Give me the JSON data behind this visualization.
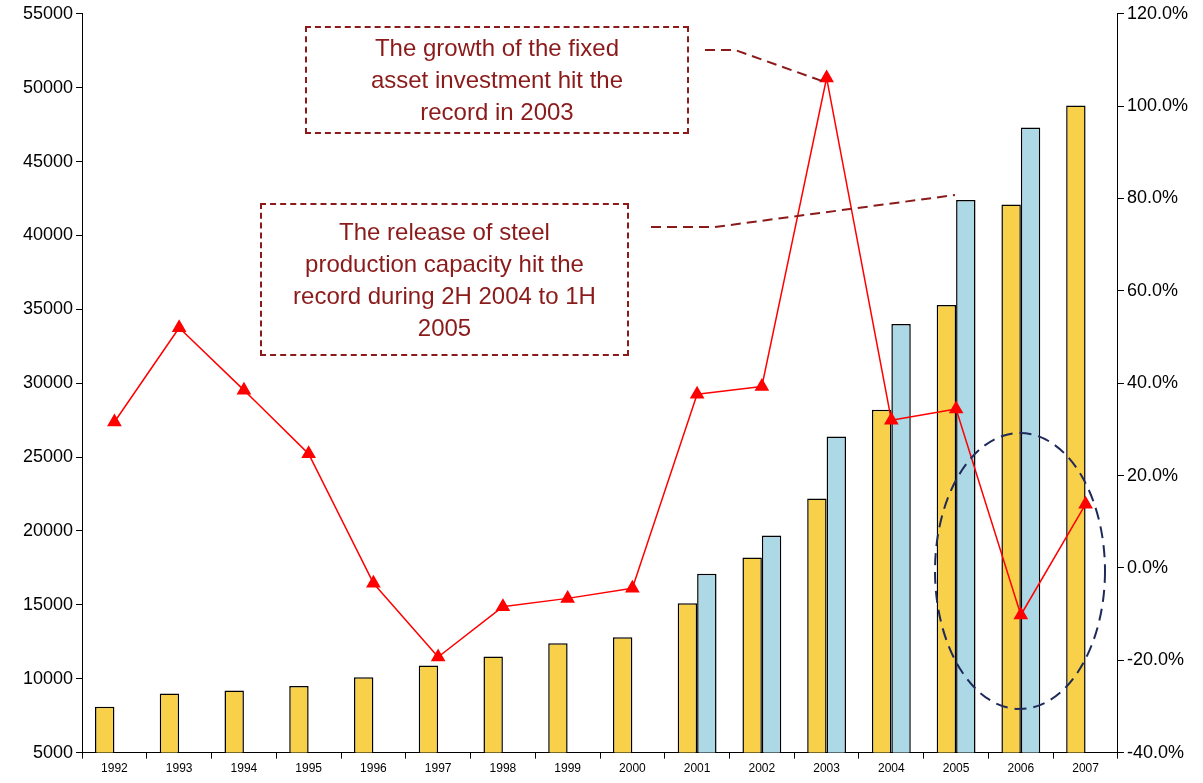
{
  "chart_data": {
    "type": "bar",
    "categories": [
      "1992",
      "1993",
      "1994",
      "1995",
      "1996",
      "1997",
      "1998",
      "1999",
      "2000",
      "2001",
      "2002",
      "2003",
      "2004",
      "2005",
      "2006",
      "2007"
    ],
    "series": [
      {
        "color": "#f8d04a",
        "values": [
          8100,
          9000,
          9200,
          9500,
          10100,
          10900,
          11500,
          12400,
          12800,
          15100,
          18200,
          22200,
          28200,
          35300,
          42100,
          48800
        ]
      },
      {
        "color": "#add8e6",
        "values": [
          null,
          null,
          null,
          null,
          null,
          null,
          null,
          null,
          null,
          17100,
          19700,
          26400,
          34000,
          42400,
          47300,
          null
        ]
      },
      {
        "type": "line",
        "axis": "y2",
        "color": "#ff0000",
        "marker": "triangle",
        "values": [
          31.6,
          52.0,
          38.5,
          24.7,
          -3.3,
          -19.3,
          -8.4,
          -6.6,
          -4.4,
          37.6,
          39.3,
          106.1,
          32.0,
          34.4,
          -10.2,
          13.8
        ]
      }
    ],
    "ylim": [
      5000,
      55000
    ],
    "yticks": [
      5000,
      10000,
      15000,
      20000,
      25000,
      30000,
      35000,
      40000,
      45000,
      50000,
      55000
    ],
    "y2lim": [
      -40,
      120
    ],
    "y2ticks": [
      {
        "value": -40,
        "label": "-40.0%"
      },
      {
        "value": -20,
        "label": "-20.0%"
      },
      {
        "value": 0,
        "label": "0.0%"
      },
      {
        "value": 20,
        "label": "20.0%"
      },
      {
        "value": 40,
        "label": "40.0%"
      },
      {
        "value": 60,
        "label": "60.0%"
      },
      {
        "value": 80,
        "label": "80.0%"
      },
      {
        "value": 100,
        "label": "100.0%"
      },
      {
        "value": 120,
        "label": "120.0%"
      }
    ],
    "annotations": [
      "The growth of the fixed asset investment hit the record in 2003",
      "The release of steel production capacity hit the record during 2H 2004 to 1H 2005"
    ],
    "grid": false,
    "legend": false
  }
}
